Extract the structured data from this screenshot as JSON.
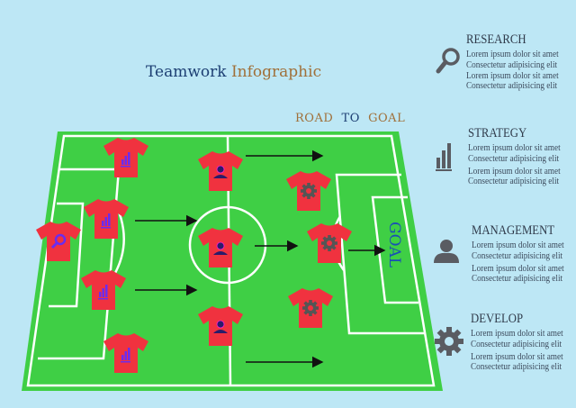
{
  "title": {
    "part1": "Teamwork",
    "part2": "Infographic"
  },
  "road": {
    "w1": "ROAD",
    "w2": "TO",
    "w3": "GOAL"
  },
  "goal_label": "GOAL",
  "colors": {
    "field": "#3fcf45",
    "shirt": "#f0323f",
    "lines": "#ffffff",
    "text_blue": "#1d3f73",
    "text_brown": "#a0703a",
    "icon_gray": "#5a5c62"
  },
  "shirts": [
    {
      "icon": "bar-chart"
    },
    {
      "icon": "person"
    },
    {
      "icon": "bar-chart"
    },
    {
      "icon": "magnifier"
    },
    {
      "icon": "person"
    },
    {
      "icon": "bar-chart"
    },
    {
      "icon": "person"
    },
    {
      "icon": "bar-chart"
    },
    {
      "icon": "gear"
    },
    {
      "icon": "gear"
    },
    {
      "icon": "gear"
    }
  ],
  "sections": [
    {
      "title": "RESEARCH",
      "icon": "magnifier-icon",
      "lines": [
        "Lorem ipsum dolor sit amet",
        "Consectetur adipisicing elit",
        "Lorem ipsum dolor sit amet",
        "Consectetur adipisicing elit"
      ]
    },
    {
      "title": "STRATEGY",
      "icon": "bar-chart-icon",
      "lines": [
        "Lorem ipsum dolor sit amet",
        "Consectetur adipisicing elit",
        "Lorem ipsum dolor sit amet",
        "Consectetur adipisicing elit"
      ]
    },
    {
      "title": "MANAGEMENT",
      "icon": "person-icon",
      "lines": [
        "Lorem ipsum dolor sit amet",
        "Consectetur adipisicing elit",
        "Lorem ipsum dolor sit amet",
        "Consectetur adipisicing elit"
      ]
    },
    {
      "title": "DEVELOP",
      "icon": "gear-icon",
      "lines": [
        "Lorem ipsum dolor sit amet",
        "Consectetur adipisicing elit",
        "Lorem ipsum dolor sit amet",
        "Consectetur adipisicing elit"
      ]
    }
  ]
}
